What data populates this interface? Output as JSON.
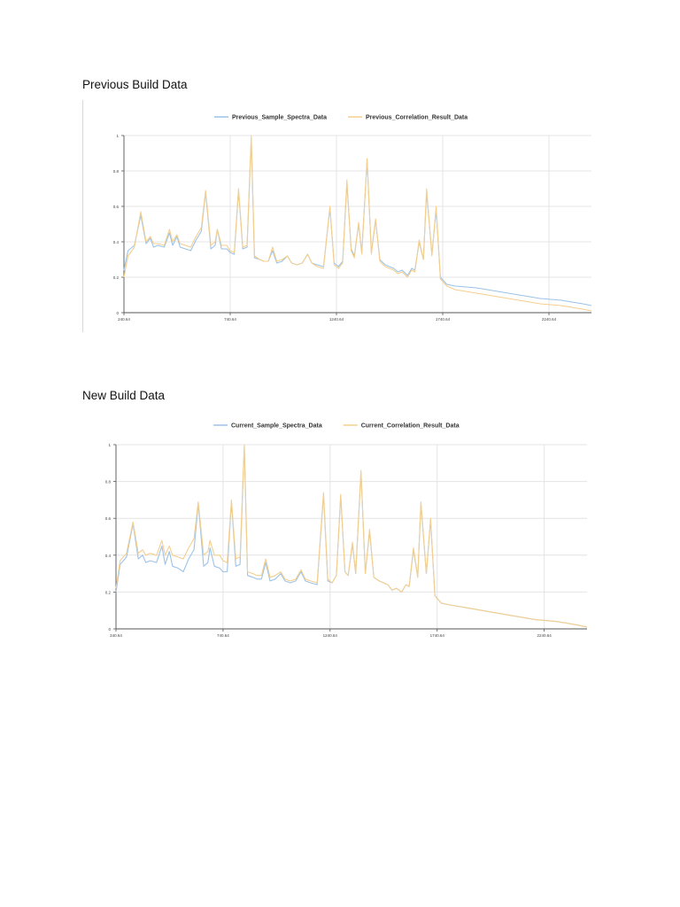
{
  "sections": [
    {
      "heading": "Previous Build Data"
    },
    {
      "heading": "New Build Data"
    }
  ],
  "colors": {
    "series_a": "#9cc3e8",
    "series_b": "#f5cf8e",
    "grid": "#e4e4e4",
    "axis": "#555555"
  },
  "chart_data": [
    {
      "type": "line",
      "title": "",
      "xlabel": "",
      "ylabel": "",
      "xlim": [
        240.64,
        2440.64
      ],
      "ylim": [
        0,
        1
      ],
      "x_ticks": [
        240.64,
        740.64,
        1240.64,
        1740.64,
        2240.64
      ],
      "x_tick_labels": [
        "240.64",
        "740.64",
        "1240.64",
        "1740.64",
        "2240.64"
      ],
      "y_ticks": [
        0,
        0.2,
        0.4,
        0.6,
        0.8,
        1
      ],
      "y_tick_labels": [
        "0",
        "0.2",
        "0.4",
        "0.6",
        "0.8",
        "1"
      ],
      "grid": true,
      "legend_position": "top-center",
      "x": [
        240.64,
        260,
        290,
        320,
        345,
        365,
        380,
        400,
        430,
        455,
        470,
        490,
        505,
        530,
        555,
        580,
        605,
        625,
        650,
        670,
        680,
        700,
        725,
        740,
        760,
        780,
        800,
        820,
        840,
        855,
        880,
        900,
        920,
        940,
        960,
        985,
        1010,
        1030,
        1055,
        1080,
        1105,
        1125,
        1150,
        1180,
        1210,
        1230,
        1250,
        1270,
        1290,
        1310,
        1325,
        1345,
        1360,
        1385,
        1405,
        1425,
        1445,
        1470,
        1490,
        1510,
        1530,
        1550,
        1575,
        1595,
        1610,
        1630,
        1650,
        1665,
        1690,
        1710,
        1730,
        1760,
        1800,
        1900,
        2000,
        2100,
        2200,
        2300,
        2400,
        2440.64
      ],
      "series": [
        {
          "name": "Previous_Sample_Spectra_Data",
          "values": [
            0.24,
            0.35,
            0.38,
            0.55,
            0.39,
            0.42,
            0.37,
            0.38,
            0.37,
            0.45,
            0.38,
            0.43,
            0.37,
            0.36,
            0.35,
            0.41,
            0.46,
            0.68,
            0.36,
            0.38,
            0.47,
            0.36,
            0.36,
            0.34,
            0.33,
            0.69,
            0.36,
            0.37,
            0.98,
            0.31,
            0.3,
            0.29,
            0.29,
            0.35,
            0.28,
            0.29,
            0.32,
            0.28,
            0.27,
            0.28,
            0.33,
            0.28,
            0.27,
            0.26,
            0.59,
            0.28,
            0.26,
            0.29,
            0.73,
            0.36,
            0.32,
            0.5,
            0.34,
            0.86,
            0.34,
            0.52,
            0.3,
            0.27,
            0.26,
            0.25,
            0.23,
            0.24,
            0.21,
            0.25,
            0.24,
            0.4,
            0.3,
            0.68,
            0.33,
            0.58,
            0.2,
            0.16,
            0.15,
            0.14,
            0.12,
            0.1,
            0.08,
            0.07,
            0.05,
            0.04
          ]
        },
        {
          "name": "Previous_Correlation_Result_Data",
          "values": [
            0.2,
            0.32,
            0.37,
            0.57,
            0.4,
            0.43,
            0.39,
            0.39,
            0.38,
            0.47,
            0.4,
            0.44,
            0.39,
            0.38,
            0.37,
            0.43,
            0.48,
            0.69,
            0.38,
            0.4,
            0.47,
            0.38,
            0.38,
            0.35,
            0.34,
            0.7,
            0.37,
            0.38,
            1.0,
            0.32,
            0.3,
            0.29,
            0.29,
            0.37,
            0.29,
            0.3,
            0.32,
            0.28,
            0.27,
            0.28,
            0.33,
            0.28,
            0.26,
            0.25,
            0.6,
            0.27,
            0.25,
            0.28,
            0.75,
            0.35,
            0.31,
            0.51,
            0.33,
            0.87,
            0.33,
            0.53,
            0.29,
            0.26,
            0.25,
            0.24,
            0.22,
            0.23,
            0.2,
            0.24,
            0.23,
            0.41,
            0.3,
            0.7,
            0.32,
            0.6,
            0.19,
            0.15,
            0.13,
            0.11,
            0.09,
            0.07,
            0.05,
            0.04,
            0.02,
            0.01
          ]
        }
      ]
    },
    {
      "type": "line",
      "title": "",
      "xlabel": "",
      "ylabel": "",
      "xlim": [
        240.64,
        2440.64
      ],
      "ylim": [
        0,
        1
      ],
      "x_ticks": [
        240.64,
        740.64,
        1240.64,
        1740.64,
        2240.64
      ],
      "x_tick_labels": [
        "240.64",
        "740.64",
        "1240.64",
        "1740.64",
        "2240.64"
      ],
      "y_ticks": [
        0,
        0.2,
        0.4,
        0.6,
        0.8,
        1
      ],
      "y_tick_labels": [
        "0",
        "0.2",
        "0.4",
        "0.6",
        "0.8",
        "1"
      ],
      "grid": true,
      "legend_position": "top-center",
      "x": [
        240.64,
        260,
        290,
        320,
        345,
        365,
        380,
        400,
        430,
        455,
        470,
        490,
        505,
        530,
        555,
        580,
        605,
        625,
        650,
        670,
        680,
        700,
        725,
        740,
        760,
        780,
        800,
        820,
        840,
        855,
        880,
        900,
        920,
        940,
        960,
        985,
        1010,
        1030,
        1055,
        1080,
        1105,
        1125,
        1150,
        1180,
        1210,
        1230,
        1250,
        1270,
        1290,
        1310,
        1325,
        1345,
        1360,
        1385,
        1405,
        1425,
        1445,
        1470,
        1490,
        1510,
        1530,
        1550,
        1575,
        1595,
        1610,
        1630,
        1650,
        1665,
        1690,
        1710,
        1730,
        1760,
        1800,
        1900,
        2000,
        2100,
        2200,
        2300,
        2400,
        2440.64
      ],
      "series": [
        {
          "name": "Current_Sample_Spectra_Data",
          "values": [
            0.2,
            0.35,
            0.39,
            0.57,
            0.38,
            0.4,
            0.36,
            0.37,
            0.36,
            0.45,
            0.35,
            0.42,
            0.34,
            0.33,
            0.31,
            0.38,
            0.43,
            0.68,
            0.34,
            0.36,
            0.44,
            0.34,
            0.33,
            0.31,
            0.31,
            0.69,
            0.34,
            0.35,
            0.99,
            0.29,
            0.28,
            0.27,
            0.27,
            0.36,
            0.26,
            0.27,
            0.3,
            0.26,
            0.25,
            0.26,
            0.31,
            0.26,
            0.25,
            0.24,
            0.73,
            0.26,
            0.25,
            0.29,
            0.72,
            0.31,
            0.29,
            0.46,
            0.3,
            0.85,
            0.3,
            0.53,
            0.28,
            0.26,
            0.25,
            0.24,
            0.21,
            0.22,
            0.2,
            0.24,
            0.23,
            0.43,
            0.28,
            0.68,
            0.3,
            0.59,
            0.18,
            0.14,
            0.13,
            0.11,
            0.09,
            0.07,
            0.05,
            0.04,
            0.02,
            0.01
          ]
        },
        {
          "name": "Current_Correlation_Result_Data",
          "values": [
            0.22,
            0.37,
            0.41,
            0.58,
            0.41,
            0.43,
            0.4,
            0.41,
            0.4,
            0.48,
            0.4,
            0.45,
            0.4,
            0.39,
            0.38,
            0.44,
            0.49,
            0.69,
            0.4,
            0.42,
            0.48,
            0.4,
            0.4,
            0.37,
            0.36,
            0.7,
            0.38,
            0.39,
            1.0,
            0.31,
            0.3,
            0.29,
            0.29,
            0.38,
            0.28,
            0.29,
            0.31,
            0.27,
            0.26,
            0.27,
            0.32,
            0.27,
            0.26,
            0.25,
            0.74,
            0.27,
            0.25,
            0.29,
            0.73,
            0.31,
            0.29,
            0.47,
            0.3,
            0.86,
            0.3,
            0.54,
            0.28,
            0.26,
            0.25,
            0.24,
            0.21,
            0.22,
            0.2,
            0.24,
            0.23,
            0.44,
            0.28,
            0.69,
            0.3,
            0.6,
            0.18,
            0.14,
            0.13,
            0.11,
            0.09,
            0.07,
            0.05,
            0.04,
            0.02,
            0.01
          ]
        }
      ]
    }
  ]
}
